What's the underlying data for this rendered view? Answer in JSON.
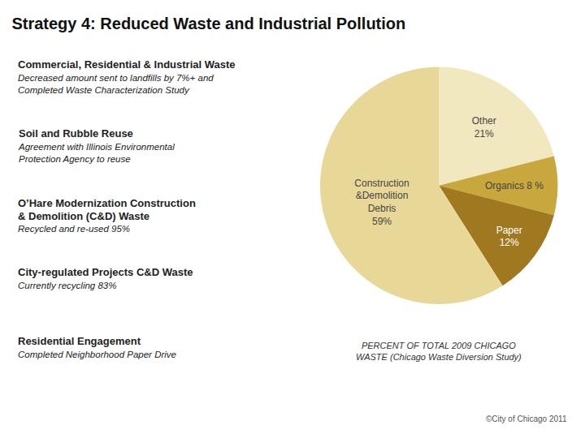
{
  "chart_data": {
    "type": "pie",
    "title": "Strategy 4: Reduced Waste and Industrial Pollution",
    "categories": [
      "Other\n21%",
      "Organics 8 %",
      "Paper\n12%",
      "Construction\n&Demolition\nDebris\n59%"
    ],
    "values": [
      21,
      8,
      12,
      59
    ],
    "colors": [
      "#f2e8c0",
      "#c8a83c",
      "#a07820",
      "#e8d898"
    ],
    "annotations": [
      {
        "heading": "Commercial, Residential & Industrial Waste",
        "detail": "Decreased amount sent to landfills by 7%+ and\nCompleted Waste Characterization Study"
      },
      {
        "heading": "Soil and Rubble Reuse",
        "detail": "Agreement with Illinois Environmental\nProtection Agency to reuse"
      },
      {
        "heading": "O’Hare Modernization Construction\n& Demolition (C&D) Waste",
        "detail": "Recycled and re-used 95%"
      },
      {
        "heading": "City-regulated Projects C&D Waste",
        "detail": "Currently recycling 83%"
      },
      {
        "heading": "Residential Engagement",
        "detail": "Completed Neighborhood Paper Drive"
      }
    ],
    "caption": "PERCENT OF TOTAL 2009 CHICAGO\nWASTE (Chicago Waste Diversion Study)",
    "footer": "©City of Chicago 2011",
    "legend": false
  }
}
